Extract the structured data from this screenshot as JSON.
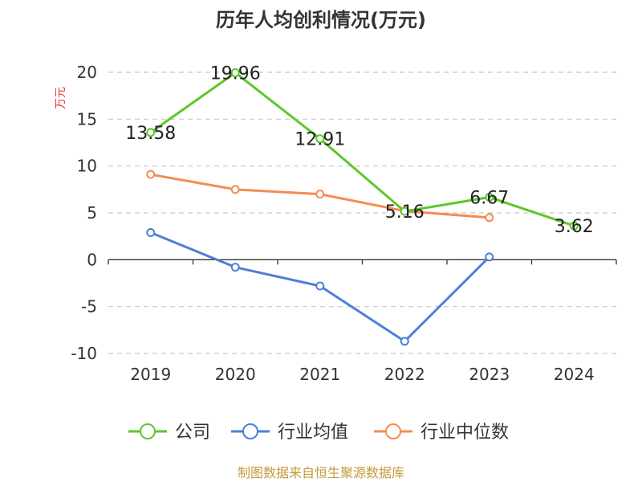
{
  "chart_data": {
    "type": "line",
    "title": "历年人均创利情况(万元)",
    "ylabel": "万元",
    "x": [
      "2019",
      "2020",
      "2021",
      "2022",
      "2023",
      "2024"
    ],
    "yticks": [
      "20",
      "15",
      "10",
      "5",
      "0",
      "-5",
      "-10"
    ],
    "ylim": [
      -10,
      20
    ],
    "grid": true,
    "legend_position": "bottom",
    "series": [
      {
        "name": "公司",
        "color": "#5cc72b",
        "values": [
          13.58,
          19.96,
          12.91,
          5.16,
          6.67,
          3.62
        ],
        "labels": [
          "13.58",
          "19.96",
          "12.91",
          "5.16",
          "6.67",
          "3.62"
        ]
      },
      {
        "name": "行业均值",
        "color": "#4e7fd8",
        "values": [
          2.9,
          -0.8,
          -2.8,
          -8.7,
          0.3,
          null
        ]
      },
      {
        "name": "行业中位数",
        "color": "#f58b53",
        "values": [
          9.1,
          7.5,
          7.0,
          5.2,
          4.5,
          null
        ]
      }
    ],
    "source": "制图数据来自恒生聚源数据库"
  }
}
